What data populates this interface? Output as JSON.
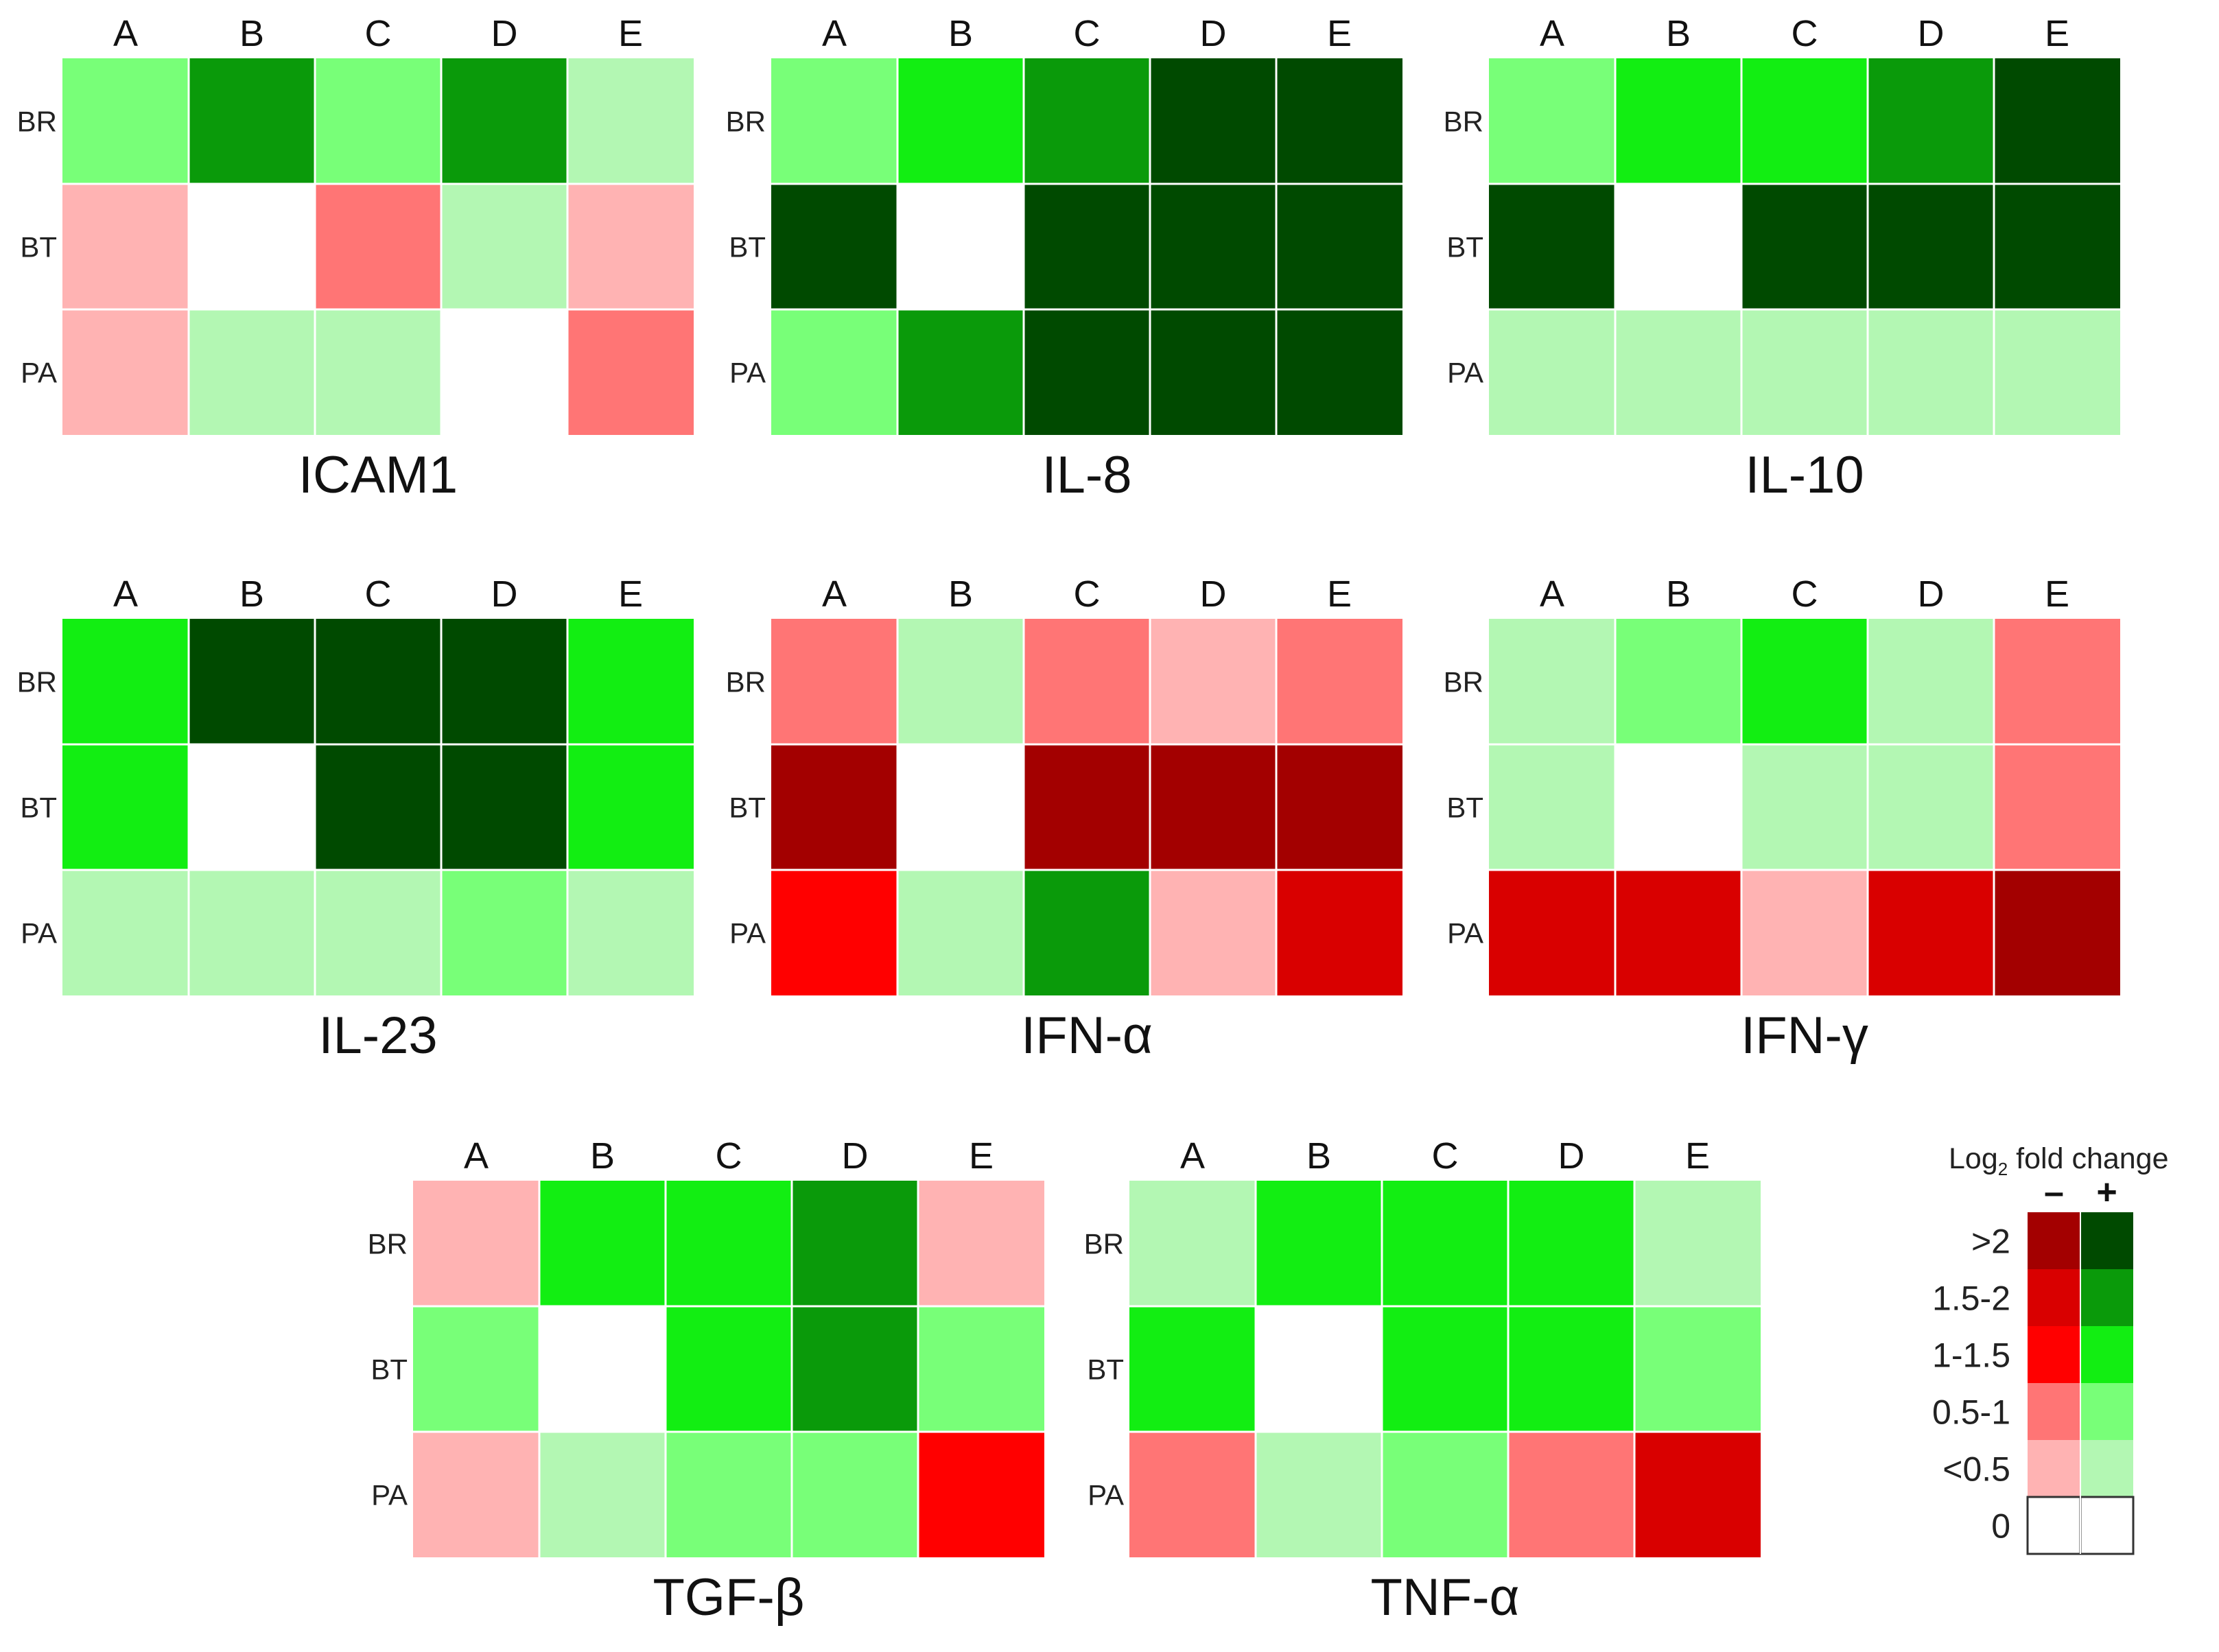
{
  "chart_data": {
    "type": "heatmap",
    "columns": [
      "A",
      "B",
      "C",
      "D",
      "E"
    ],
    "rows": [
      "BR",
      "BT",
      "PA"
    ],
    "value_encoding": "signed log2 fold change category: positive = increase (green), negative = decrease (red); levels 1:<0.5, 2:0.5-1, 3:1-1.5, 4:1.5-2, 5:>2; 0 = no change (white)",
    "panels": [
      {
        "title": "ICAM1",
        "values": [
          [
            2,
            4,
            2,
            4,
            1
          ],
          [
            -1,
            0,
            -2,
            1,
            -1
          ],
          [
            -1,
            1,
            1,
            0,
            -2
          ]
        ]
      },
      {
        "title": "IL-8",
        "values": [
          [
            2,
            3,
            4,
            5,
            5
          ],
          [
            5,
            0,
            5,
            5,
            5
          ],
          [
            2,
            4,
            5,
            5,
            5
          ]
        ]
      },
      {
        "title": "IL-10",
        "values": [
          [
            2,
            3,
            3,
            4,
            5
          ],
          [
            5,
            0,
            5,
            5,
            5
          ],
          [
            1,
            1,
            1,
            1,
            1
          ]
        ]
      },
      {
        "title": "IL-23",
        "values": [
          [
            3,
            5,
            5,
            5,
            3
          ],
          [
            3,
            0,
            5,
            5,
            3
          ],
          [
            1,
            1,
            1,
            2,
            1
          ]
        ]
      },
      {
        "title": "IFN-α",
        "values": [
          [
            -2,
            1,
            -2,
            -1,
            -2
          ],
          [
            -5,
            0,
            -5,
            -5,
            -5
          ],
          [
            -3,
            1,
            4,
            -1,
            -4
          ]
        ]
      },
      {
        "title": "IFN-γ",
        "values": [
          [
            1,
            2,
            3,
            1,
            -2
          ],
          [
            1,
            0,
            1,
            1,
            -2
          ],
          [
            -4,
            -4,
            -1,
            -4,
            -5
          ]
        ]
      },
      {
        "title": "TGF-β",
        "values": [
          [
            -1,
            3,
            3,
            4,
            -1
          ],
          [
            2,
            0,
            3,
            4,
            2
          ],
          [
            -1,
            1,
            2,
            2,
            -3
          ]
        ]
      },
      {
        "title": "TNF-α",
        "values": [
          [
            1,
            3,
            3,
            3,
            1
          ],
          [
            3,
            0,
            3,
            3,
            2
          ],
          [
            -2,
            1,
            2,
            -2,
            -4
          ]
        ]
      }
    ],
    "legend": {
      "title_prefix": "Log",
      "title_subscript": "2",
      "title_suffix": " fold change",
      "neg_symbol": "–",
      "pos_symbol": "+",
      "categories": [
        ">2",
        "1.5-2",
        "1-1.5",
        "0.5-1",
        "<0.5",
        "0"
      ],
      "neg_colors": [
        "#a30000",
        "#d90000",
        "#ff0000",
        "#ff7575",
        "#ffb3b3",
        "#ffffff"
      ],
      "pos_colors": [
        "#004a00",
        "#0a9a0a",
        "#12ee12",
        "#78ff78",
        "#b3f7b3",
        "#ffffff"
      ]
    }
  }
}
